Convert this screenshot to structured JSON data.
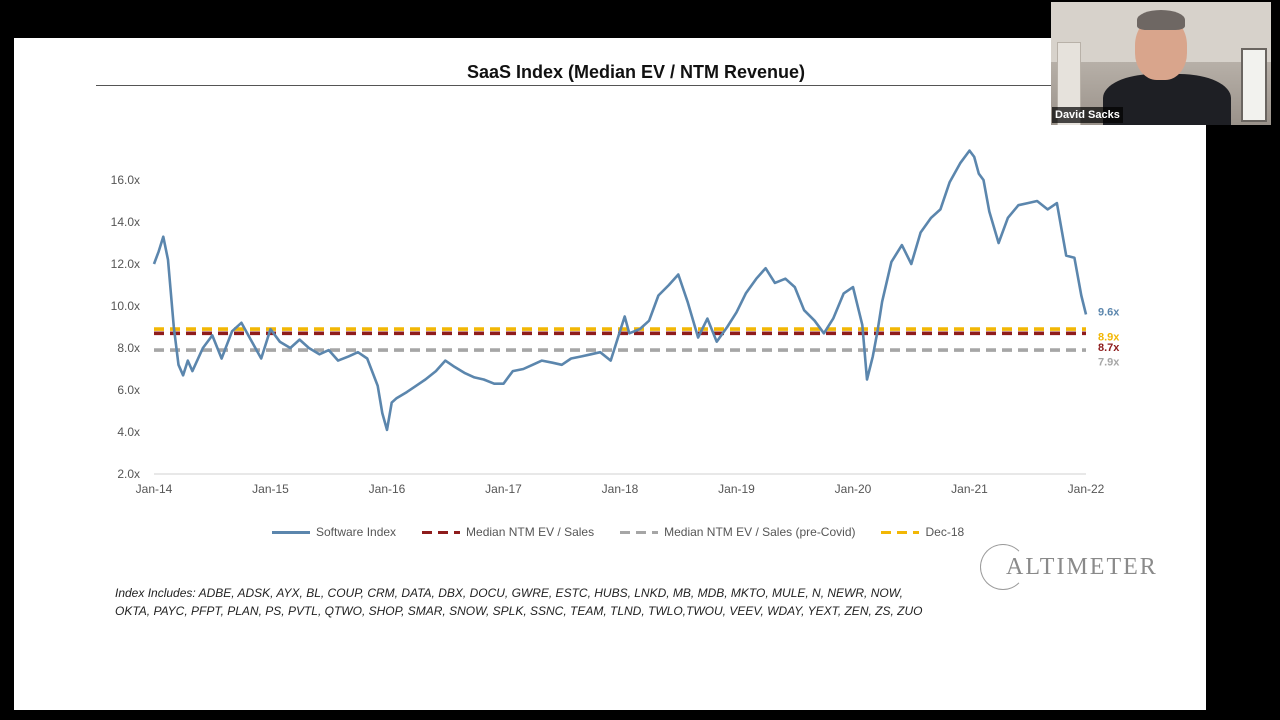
{
  "chart_data": {
    "type": "line",
    "title": "SaaS Index (Median EV / NTM Revenue)",
    "y_ticks": [
      "2.0x",
      "4.0x",
      "6.0x",
      "8.0x",
      "10.0x",
      "12.0x",
      "14.0x",
      "16.0x"
    ],
    "x_ticks": [
      "Jan-14",
      "Jan-15",
      "Jan-16",
      "Jan-17",
      "Jan-18",
      "Jan-19",
      "Jan-20",
      "Jan-21",
      "Jan-22"
    ],
    "ylim": [
      2,
      18
    ],
    "xlim": [
      2014.0,
      2022.0
    ],
    "grid": false,
    "legend_placement": "bottom",
    "series": [
      {
        "name": "Software Index",
        "color": "#5b86ad",
        "style": "solid",
        "end_label": "9.6x",
        "x": [
          2014.0,
          2014.04,
          2014.08,
          2014.12,
          2014.17,
          2014.21,
          2014.25,
          2014.29,
          2014.33,
          2014.42,
          2014.5,
          2014.58,
          2014.67,
          2014.75,
          2014.83,
          2014.92,
          2015.0,
          2015.08,
          2015.17,
          2015.25,
          2015.33,
          2015.42,
          2015.5,
          2015.58,
          2015.67,
          2015.75,
          2015.83,
          2015.92,
          2015.96,
          2016.0,
          2016.04,
          2016.08,
          2016.17,
          2016.25,
          2016.33,
          2016.42,
          2016.5,
          2016.58,
          2016.67,
          2016.75,
          2016.83,
          2016.92,
          2017.0,
          2017.08,
          2017.17,
          2017.25,
          2017.33,
          2017.42,
          2017.5,
          2017.58,
          2017.67,
          2017.75,
          2017.83,
          2017.92,
          2018.0,
          2018.04,
          2018.08,
          2018.17,
          2018.25,
          2018.33,
          2018.42,
          2018.5,
          2018.58,
          2018.67,
          2018.75,
          2018.83,
          2018.92,
          2019.0,
          2019.08,
          2019.17,
          2019.25,
          2019.33,
          2019.42,
          2019.5,
          2019.58,
          2019.67,
          2019.75,
          2019.83,
          2019.92,
          2020.0,
          2020.08,
          2020.12,
          2020.17,
          2020.21,
          2020.25,
          2020.33,
          2020.42,
          2020.5,
          2020.58,
          2020.67,
          2020.75,
          2020.83,
          2020.92,
          2021.0,
          2021.04,
          2021.08,
          2021.12,
          2021.17,
          2021.25,
          2021.33,
          2021.42,
          2021.5,
          2021.58,
          2021.67,
          2021.75,
          2021.83,
          2021.9,
          2021.96,
          2022.0
        ],
        "y": [
          12.0,
          12.6,
          13.3,
          12.2,
          9.0,
          7.2,
          6.7,
          7.4,
          6.9,
          8.0,
          8.6,
          7.5,
          8.8,
          9.2,
          8.4,
          7.5,
          8.9,
          8.3,
          8.0,
          8.4,
          8.0,
          7.7,
          7.9,
          7.4,
          7.6,
          7.8,
          7.5,
          6.2,
          4.9,
          4.1,
          5.4,
          5.6,
          5.9,
          6.2,
          6.5,
          6.9,
          7.4,
          7.1,
          6.8,
          6.6,
          6.5,
          6.3,
          6.3,
          6.9,
          7.0,
          7.2,
          7.4,
          7.3,
          7.2,
          7.5,
          7.6,
          7.7,
          7.8,
          7.4,
          8.8,
          9.5,
          8.7,
          8.9,
          9.3,
          10.5,
          11.0,
          11.5,
          10.2,
          8.5,
          9.4,
          8.3,
          9.0,
          9.7,
          10.6,
          11.3,
          11.8,
          11.1,
          11.3,
          10.9,
          9.8,
          9.3,
          8.7,
          9.4,
          10.6,
          10.9,
          9.1,
          6.5,
          7.6,
          8.8,
          10.2,
          12.1,
          12.9,
          12.0,
          13.5,
          14.2,
          14.6,
          15.9,
          16.8,
          17.4,
          17.1,
          16.3,
          16.0,
          14.5,
          13.0,
          14.2,
          14.8,
          14.9,
          15.0,
          14.6,
          14.9,
          12.4,
          12.3,
          10.5,
          9.6
        ]
      },
      {
        "name": "Median NTM EV / Sales",
        "color": "#8e1c1c",
        "style": "dashed",
        "end_label": "8.7x",
        "x": [
          2014.0,
          2022.0
        ],
        "y": [
          8.7,
          8.7
        ]
      },
      {
        "name": "Median NTM EV / Sales (pre-Covid)",
        "color": "#a6a6a6",
        "style": "dashed",
        "end_label": "7.9x",
        "x": [
          2014.0,
          2022.0
        ],
        "y": [
          7.9,
          7.9
        ]
      },
      {
        "name": "Dec-18",
        "color": "#f2b705",
        "style": "dashed",
        "end_label": "8.9x",
        "x": [
          2014.0,
          2022.0
        ],
        "y": [
          8.9,
          8.9
        ]
      }
    ]
  },
  "logo_text": "ALTIMETER",
  "footnote_lines": [
    "Index Includes: ADBE, ADSK, AYX, BL, COUP, CRM, DATA, DBX, DOCU, GWRE, ESTC, HUBS, LNKD, MB, MDB, MKTO, MULE, N, NEWR, NOW,",
    "OKTA, PAYC, PFPT, PLAN, PS, PVTL, QTWO, SHOP, SMAR, SNOW, SPLK, SSNC, TEAM, TLND, TWLO,TWOU, VEEV, WDAY, YEXT, ZEN, ZS, ZUO"
  ],
  "video": {
    "participant_name": "David Sacks"
  }
}
